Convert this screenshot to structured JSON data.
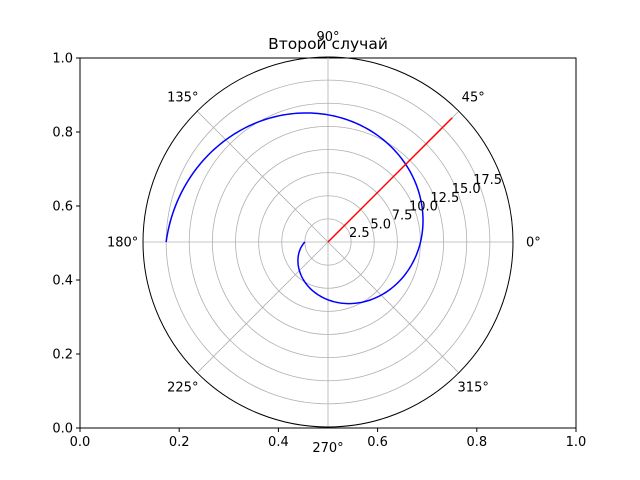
{
  "chart_data": {
    "type": "line",
    "title": "Второй случай",
    "projection": "polar",
    "grid": true,
    "cartesian_axes": {
      "xlim": [
        0,
        1
      ],
      "ylim": [
        0,
        1
      ],
      "xticks": [
        "0.0",
        "0.2",
        "0.4",
        "0.6",
        "0.8",
        "1.0"
      ],
      "yticks": [
        "0.0",
        "0.2",
        "0.4",
        "0.6",
        "0.8",
        "1.0"
      ]
    },
    "polar_axes": {
      "rlim": [
        0,
        20
      ],
      "rticks": [
        "2.5",
        "5.0",
        "7.5",
        "10.0",
        "12.5",
        "15.0",
        "17.5"
      ],
      "rtick_values": [
        2.5,
        5,
        7.5,
        10,
        12.5,
        15,
        17.5
      ],
      "theta_ticks_deg": [
        0,
        45,
        90,
        135,
        180,
        225,
        270,
        315
      ],
      "theta_tick_labels": [
        "0°",
        "45°",
        "90°",
        "135°",
        "180°",
        "225°",
        "270°",
        "315°"
      ],
      "rlabel_position_deg": 22.5
    },
    "series": [
      {
        "color": "#0000ff",
        "kind": "spiral",
        "theta_deg_start": 180,
        "theta_deg_end": 540,
        "r_at_start": 2.5,
        "r_at_end": 17.5
      },
      {
        "color": "#ff0000",
        "kind": "ray",
        "theta_deg": 45,
        "r": [
          0,
          19
        ]
      }
    ]
  }
}
